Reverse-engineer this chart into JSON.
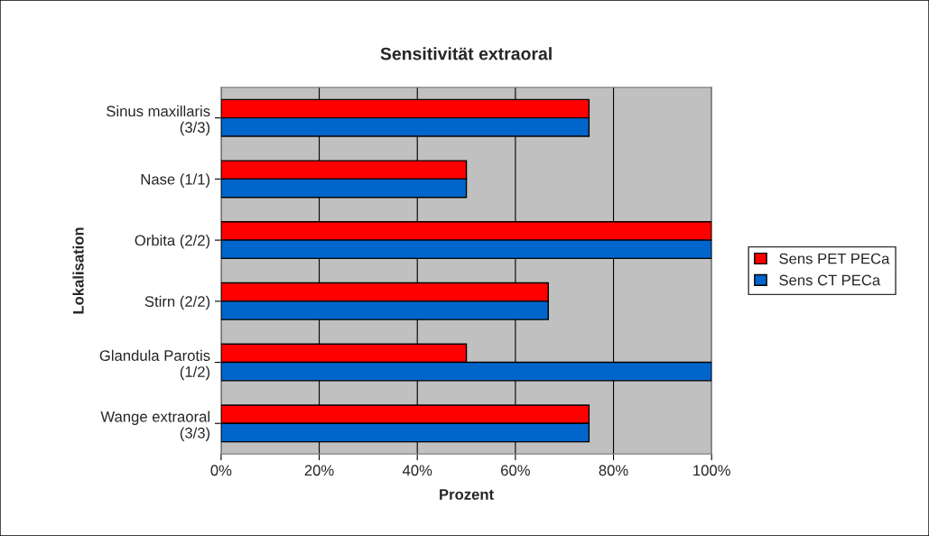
{
  "chart_data": {
    "type": "bar",
    "orientation": "horizontal",
    "title": "Sensitivität extraoral",
    "xlabel": "Prozent",
    "ylabel": "Lokalisation",
    "categories": [
      "Sinus maxillaris\n(3/3)",
      "Nase (1/1)",
      "Orbita (2/2)",
      "Stirn (2/2)",
      "Glandula Parotis\n(1/2)",
      "Wange extraoral\n(3/3)"
    ],
    "series": [
      {
        "name": "Sens PET PECa",
        "color": "#ff0000",
        "values": [
          75,
          50,
          100,
          66.7,
          50,
          75
        ]
      },
      {
        "name": "Sens CT PECa",
        "color": "#0066cc",
        "values": [
          75,
          50,
          100,
          66.7,
          100,
          75
        ]
      }
    ],
    "xlim": [
      0,
      100
    ],
    "xticks": [
      {
        "value": 0,
        "label": "0%"
      },
      {
        "value": 20,
        "label": "20%"
      },
      {
        "value": 40,
        "label": "40%"
      },
      {
        "value": 60,
        "label": "60%"
      },
      {
        "value": 80,
        "label": "80%"
      },
      {
        "value": 100,
        "label": "100%"
      }
    ],
    "grid": "x",
    "legend": "right"
  }
}
